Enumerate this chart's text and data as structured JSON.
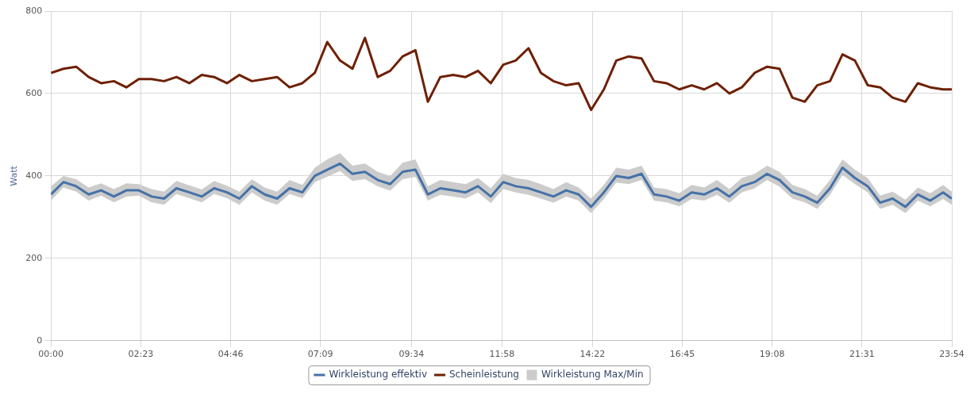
{
  "chart_data": {
    "type": "line",
    "ylabel": "Watt",
    "x": [
      0,
      0.33,
      0.67,
      1,
      1.33,
      1.67,
      2,
      2.33,
      2.67,
      3,
      3.33,
      3.67,
      4,
      4.33,
      4.67,
      5,
      5.33,
      5.67,
      6,
      6.33,
      6.67,
      7,
      7.33,
      7.67,
      8,
      8.33,
      8.67,
      9,
      9.33,
      9.67,
      10,
      10.33,
      10.67,
      11,
      11.33,
      11.67,
      12,
      12.33,
      12.67,
      13,
      13.33,
      13.67,
      14,
      14.33,
      14.67,
      15,
      15.33,
      15.67,
      16,
      16.33,
      16.67,
      17,
      17.33,
      17.67,
      18,
      18.33,
      18.67,
      19,
      19.33,
      19.67,
      20,
      20.33,
      20.67,
      21,
      21.33,
      21.67,
      22,
      22.33,
      22.67,
      23,
      23.33,
      23.67,
      23.9
    ],
    "xlim": [
      0,
      23.9
    ],
    "xticks": [
      {
        "value": 0,
        "label": "00:00"
      },
      {
        "value": 2.383,
        "label": "02:23"
      },
      {
        "value": 4.767,
        "label": "04:46"
      },
      {
        "value": 7.15,
        "label": "07:09"
      },
      {
        "value": 9.567,
        "label": "09:34"
      },
      {
        "value": 11.967,
        "label": "11:58"
      },
      {
        "value": 14.367,
        "label": "14:22"
      },
      {
        "value": 16.75,
        "label": "16:45"
      },
      {
        "value": 19.133,
        "label": "19:08"
      },
      {
        "value": 21.517,
        "label": "21:31"
      },
      {
        "value": 23.9,
        "label": "23:54"
      }
    ],
    "ylim": [
      0,
      800
    ],
    "yticks": [
      0,
      200,
      400,
      600,
      800
    ],
    "grid": true,
    "legend": "bottom",
    "marker": "none",
    "line_style": "solid",
    "series": [
      {
        "name": "Wirkleistung Max/Min",
        "type": "area",
        "color": "#cccccc",
        "values": [
          null,
          null,
          null,
          null,
          null,
          null,
          null,
          null,
          null,
          null,
          null,
          null,
          null,
          null,
          null,
          null,
          null,
          null,
          null,
          null,
          null,
          null,
          null,
          null,
          null,
          null,
          null,
          null,
          null,
          null,
          null,
          null,
          null,
          null,
          null,
          null,
          null,
          null,
          null,
          null,
          null,
          null,
          null,
          null,
          null,
          null,
          null,
          null,
          null,
          null,
          null,
          null,
          null,
          null,
          null,
          null,
          null,
          null,
          null,
          null,
          null,
          null,
          null,
          null,
          null,
          null,
          null,
          null,
          null,
          null,
          null,
          null,
          null
        ],
        "upper": [
          375,
          400,
          392,
          372,
          382,
          368,
          382,
          380,
          368,
          362,
          388,
          377,
          367,
          388,
          376,
          362,
          392,
          372,
          362,
          390,
          378,
          420,
          440,
          455,
          425,
          430,
          410,
          400,
          432,
          440,
          375,
          390,
          385,
          380,
          395,
          370,
          405,
          395,
          390,
          380,
          368,
          385,
          372,
          345,
          378,
          420,
          415,
          425,
          372,
          368,
          358,
          378,
          372,
          390,
          368,
          395,
          405,
          425,
          410,
          378,
          368,
          352,
          390,
          440,
          415,
          395,
          352,
          362,
          342,
          372,
          358,
          378,
          362
        ],
        "lower": [
          340,
          372,
          362,
          340,
          352,
          336,
          350,
          352,
          336,
          330,
          356,
          346,
          336,
          356,
          346,
          330,
          360,
          340,
          330,
          356,
          346,
          385,
          398,
          412,
          388,
          392,
          375,
          364,
          392,
          398,
          340,
          354,
          350,
          345,
          360,
          334,
          368,
          360,
          354,
          345,
          335,
          350,
          340,
          310,
          344,
          384,
          380,
          390,
          340,
          336,
          326,
          344,
          340,
          354,
          335,
          360,
          370,
          390,
          374,
          345,
          336,
          320,
          354,
          402,
          380,
          360,
          320,
          330,
          310,
          340,
          326,
          344,
          330
        ]
      },
      {
        "name": "Wirkleistung effektiv",
        "color": "#4572a7",
        "values": [
          355,
          385,
          375,
          355,
          365,
          350,
          365,
          365,
          350,
          345,
          370,
          360,
          350,
          370,
          360,
          345,
          375,
          355,
          345,
          370,
          360,
          400,
          415,
          430,
          405,
          410,
          390,
          380,
          410,
          415,
          355,
          370,
          365,
          360,
          375,
          350,
          385,
          375,
          370,
          360,
          350,
          365,
          355,
          325,
          360,
          400,
          395,
          405,
          355,
          350,
          340,
          360,
          355,
          370,
          350,
          375,
          385,
          405,
          390,
          360,
          350,
          335,
          370,
          420,
          395,
          375,
          335,
          345,
          325,
          355,
          340,
          360,
          345
        ]
      },
      {
        "name": "Scheinleistung",
        "color": "#6e2005",
        "values": [
          650,
          660,
          665,
          640,
          625,
          630,
          615,
          635,
          635,
          630,
          640,
          625,
          645,
          640,
          625,
          645,
          630,
          635,
          640,
          615,
          625,
          650,
          725,
          680,
          660,
          735,
          640,
          655,
          690,
          705,
          580,
          640,
          645,
          640,
          655,
          625,
          670,
          680,
          710,
          650,
          630,
          620,
          625,
          560,
          610,
          680,
          690,
          685,
          630,
          625,
          610,
          620,
          610,
          625,
          600,
          615,
          650,
          665,
          660,
          590,
          580,
          620,
          630,
          695,
          680,
          620,
          615,
          590,
          580,
          625,
          615,
          610,
          610
        ]
      }
    ]
  }
}
